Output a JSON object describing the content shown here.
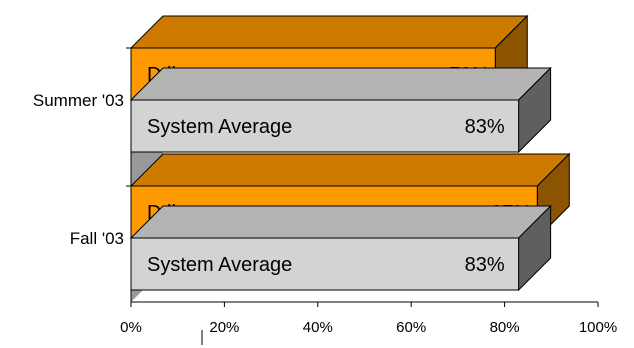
{
  "chart_data": {
    "type": "bar",
    "orientation": "horizontal",
    "style": "3d",
    "categories": [
      "Summer '03",
      "Fall '03"
    ],
    "series": [
      {
        "name": "D line",
        "values": [
          78,
          87
        ],
        "value_labels": [
          "78%",
          "87%"
        ],
        "color": "#FF9900"
      },
      {
        "name": "System Average",
        "values": [
          83,
          83
        ],
        "value_labels": [
          "83%",
          "83%"
        ],
        "color": "#D3D3D3"
      }
    ],
    "x_ticks": [
      0,
      20,
      40,
      60,
      80,
      100
    ],
    "x_tick_labels": [
      "0%",
      "20%",
      "40%",
      "60%",
      "80%",
      "100%"
    ],
    "xlim": [
      0,
      100
    ],
    "grid": false,
    "legend": "none"
  }
}
